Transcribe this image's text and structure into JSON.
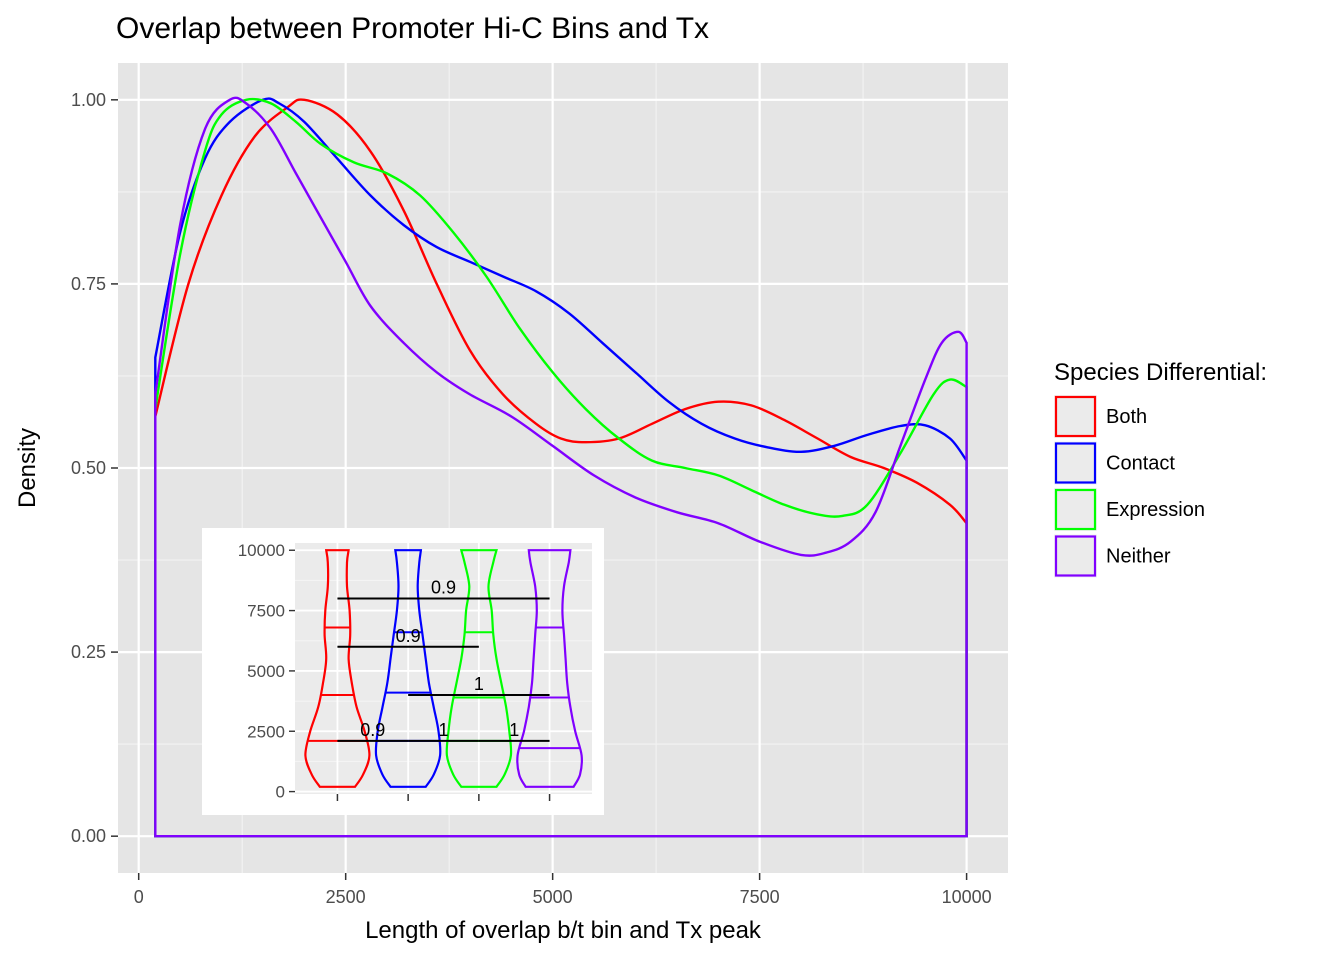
{
  "chart_data": {
    "type": "line",
    "title": "Overlap between Promoter Hi-C Bins and Tx",
    "xlabel": "Length of overlap b/t bin and Tx peak",
    "ylabel": "Density",
    "xlim": [
      -250,
      10500
    ],
    "ylim": [
      -0.05,
      1.05
    ],
    "x_ticks": [
      0,
      2500,
      5000,
      7500,
      10000
    ],
    "x_tick_labels": [
      "0",
      "2500",
      "5000",
      "7500",
      "10000"
    ],
    "y_ticks": [
      0,
      0.25,
      0.5,
      0.75,
      1.0
    ],
    "y_tick_labels": [
      "0.00",
      "0.25",
      "0.50",
      "0.75",
      "1.00"
    ],
    "grid": true,
    "legend": {
      "title": "Species Differential:",
      "position": "right",
      "entries": [
        "Both",
        "Contact",
        "Expression",
        "Neither"
      ]
    },
    "series": [
      {
        "name": "Both",
        "color": "#ff0000",
        "x": [
          200,
          600,
          1000,
          1400,
          1800,
          2000,
          2400,
          2800,
          3200,
          3600,
          4000,
          4400,
          4800,
          5100,
          5400,
          5800,
          6200,
          6600,
          7000,
          7400,
          7800,
          8200,
          8600,
          9000,
          9400,
          9800,
          10000
        ],
        "y": [
          0.57,
          0.75,
          0.87,
          0.95,
          0.99,
          1.0,
          0.98,
          0.93,
          0.85,
          0.75,
          0.66,
          0.6,
          0.56,
          0.54,
          0.535,
          0.54,
          0.56,
          0.58,
          0.59,
          0.585,
          0.565,
          0.54,
          0.515,
          0.5,
          0.48,
          0.45,
          0.425
        ]
      },
      {
        "name": "Contact",
        "color": "#0000ff",
        "x": [
          200,
          500,
          800,
          1100,
          1500,
          1700,
          2000,
          2400,
          2800,
          3200,
          3600,
          4000,
          4400,
          4800,
          5200,
          5600,
          6000,
          6400,
          6800,
          7200,
          7600,
          8000,
          8400,
          8800,
          9200,
          9500,
          9800,
          10000
        ],
        "y": [
          0.65,
          0.82,
          0.92,
          0.97,
          1.0,
          0.995,
          0.97,
          0.92,
          0.87,
          0.83,
          0.8,
          0.78,
          0.76,
          0.74,
          0.71,
          0.67,
          0.63,
          0.59,
          0.56,
          0.54,
          0.528,
          0.522,
          0.53,
          0.545,
          0.557,
          0.558,
          0.54,
          0.51
        ]
      },
      {
        "name": "Expression",
        "color": "#00ff00",
        "x": [
          200,
          500,
          800,
          1000,
          1300,
          1600,
          1900,
          2200,
          2600,
          3000,
          3400,
          3800,
          4200,
          4600,
          5000,
          5400,
          5800,
          6200,
          6600,
          7000,
          7400,
          7800,
          8200,
          8500,
          8800,
          9200,
          9600,
          9800,
          10000
        ],
        "y": [
          0.58,
          0.79,
          0.93,
          0.98,
          1.0,
          0.995,
          0.97,
          0.94,
          0.915,
          0.9,
          0.87,
          0.82,
          0.76,
          0.69,
          0.63,
          0.58,
          0.54,
          0.51,
          0.5,
          0.49,
          0.47,
          0.45,
          0.437,
          0.435,
          0.45,
          0.52,
          0.6,
          0.62,
          0.61
        ]
      },
      {
        "name": "Neither",
        "color": "#8000ff",
        "x": [
          200,
          500,
          800,
          1100,
          1300,
          1600,
          1900,
          2200,
          2500,
          2800,
          3200,
          3600,
          4000,
          4500,
          5000,
          5500,
          6000,
          6500,
          7000,
          7500,
          8000,
          8300,
          8600,
          8900,
          9200,
          9500,
          9700,
          9900,
          10000
        ],
        "y": [
          0.6,
          0.83,
          0.96,
          1.0,
          0.995,
          0.96,
          0.9,
          0.84,
          0.78,
          0.72,
          0.67,
          0.63,
          0.6,
          0.57,
          0.53,
          0.49,
          0.46,
          0.44,
          0.425,
          0.4,
          0.382,
          0.385,
          0.4,
          0.44,
          0.53,
          0.62,
          0.67,
          0.685,
          0.67
        ]
      }
    ],
    "inset": {
      "type": "violin",
      "ylim": [
        -100,
        10300
      ],
      "y_ticks": [
        0,
        2500,
        5000,
        7500,
        10000
      ],
      "y_tick_labels": [
        "0",
        "2500",
        "5000",
        "7500",
        "10000"
      ],
      "groups": [
        {
          "name": "Both",
          "color": "#ff0000",
          "q1": 2100,
          "median": 4000,
          "q3": 6800,
          "profile": [
            [
              200,
              0.55
            ],
            [
              700,
              0.8
            ],
            [
              1500,
              1.0
            ],
            [
              2500,
              0.85
            ],
            [
              3500,
              0.6
            ],
            [
              4500,
              0.45
            ],
            [
              5500,
              0.35
            ],
            [
              6500,
              0.4
            ],
            [
              7500,
              0.38
            ],
            [
              8500,
              0.3
            ],
            [
              9500,
              0.3
            ],
            [
              10000,
              0.35
            ]
          ]
        },
        {
          "name": "Contact",
          "color": "#0000ff",
          "q1": 2100,
          "median": 4100,
          "q3": 6600,
          "profile": [
            [
              200,
              0.55
            ],
            [
              700,
              0.8
            ],
            [
              1500,
              1.0
            ],
            [
              2500,
              0.95
            ],
            [
              3500,
              0.8
            ],
            [
              4500,
              0.65
            ],
            [
              5500,
              0.55
            ],
            [
              6500,
              0.45
            ],
            [
              7500,
              0.35
            ],
            [
              8500,
              0.3
            ],
            [
              9500,
              0.35
            ],
            [
              10000,
              0.4
            ]
          ]
        },
        {
          "name": "Expression",
          "color": "#00ff00",
          "q1": 2100,
          "median": 3900,
          "q3": 6600,
          "profile": [
            [
              200,
              0.55
            ],
            [
              700,
              0.8
            ],
            [
              1500,
              1.0
            ],
            [
              2500,
              0.95
            ],
            [
              3500,
              0.85
            ],
            [
              4500,
              0.7
            ],
            [
              5500,
              0.55
            ],
            [
              6500,
              0.45
            ],
            [
              7500,
              0.4
            ],
            [
              8500,
              0.3
            ],
            [
              9500,
              0.45
            ],
            [
              10000,
              0.55
            ]
          ]
        },
        {
          "name": "Neither",
          "color": "#8000ff",
          "q1": 1800,
          "median": 3900,
          "q3": 6800,
          "profile": [
            [
              200,
              0.75
            ],
            [
              700,
              0.95
            ],
            [
              1500,
              1.0
            ],
            [
              2500,
              0.8
            ],
            [
              3500,
              0.65
            ],
            [
              4500,
              0.55
            ],
            [
              5500,
              0.5
            ],
            [
              6500,
              0.45
            ],
            [
              7500,
              0.4
            ],
            [
              8500,
              0.45
            ],
            [
              9500,
              0.6
            ],
            [
              10000,
              0.65
            ]
          ]
        }
      ],
      "comparisons": [
        {
          "from": 0,
          "to": 3,
          "y": 8000,
          "label": "0.9"
        },
        {
          "from": 0,
          "to": 2,
          "y": 6000,
          "label": "0.9"
        },
        {
          "from": 1,
          "to": 3,
          "y": 4000,
          "label": "1"
        },
        {
          "from": 0,
          "to": 1,
          "y": 2100,
          "label": "0.9"
        },
        {
          "from": 1,
          "to": 2,
          "y": 2100,
          "label": "1"
        },
        {
          "from": 2,
          "to": 3,
          "y": 2100,
          "label": "1"
        }
      ]
    }
  }
}
